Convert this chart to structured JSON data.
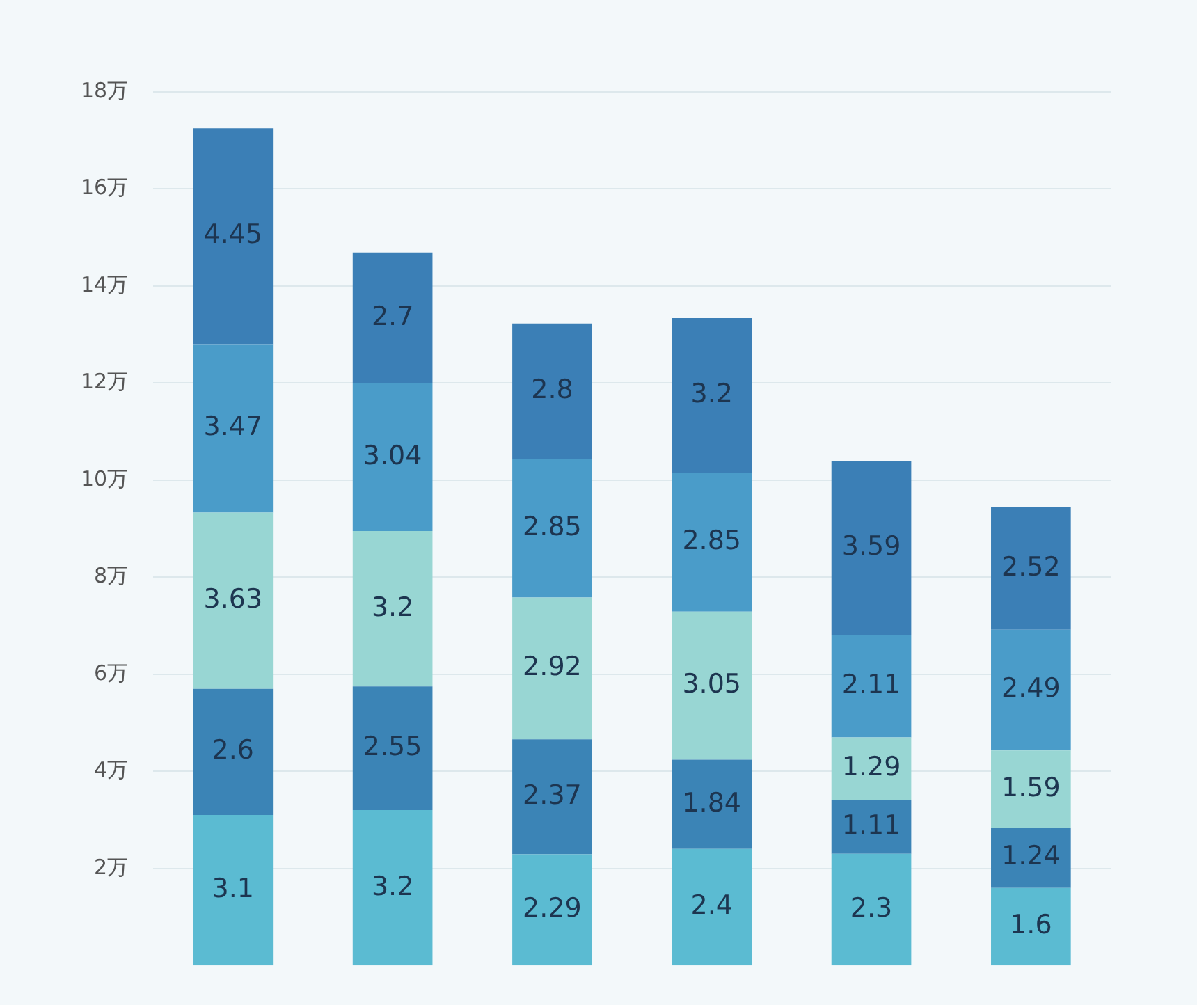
{
  "chart_data": {
    "type": "bar",
    "stacked": true,
    "categories": [
      null,
      null,
      null,
      null,
      null,
      null
    ],
    "series": [
      {
        "color": "#5bbbd2",
        "values": [
          3.1,
          3.2,
          2.29,
          2.4,
          2.3,
          1.6
        ]
      },
      {
        "color": "#3b84b6",
        "values": [
          2.6,
          2.55,
          2.37,
          1.84,
          1.11,
          1.24
        ]
      },
      {
        "color": "#98d6d3",
        "values": [
          3.63,
          3.2,
          2.92,
          3.05,
          1.29,
          1.59
        ]
      },
      {
        "color": "#4a9cc9",
        "values": [
          3.47,
          3.04,
          2.85,
          2.85,
          2.11,
          2.49
        ]
      },
      {
        "color": "#3b7fb6",
        "values": [
          4.45,
          2.7,
          2.8,
          3.2,
          3.59,
          2.52
        ]
      }
    ],
    "ylim": [
      0,
      18
    ],
    "yticks": [
      {
        "value": 2,
        "label": "2万"
      },
      {
        "value": 4,
        "label": "4万"
      },
      {
        "value": 6,
        "label": "6万"
      },
      {
        "value": 8,
        "label": "8万"
      },
      {
        "value": 10,
        "label": "10万"
      },
      {
        "value": 12,
        "label": "12万"
      },
      {
        "value": 14,
        "label": "14万"
      },
      {
        "value": 16,
        "label": "16万"
      },
      {
        "value": 18,
        "label": "18万"
      }
    ],
    "grid": "y",
    "data_labels": true
  }
}
